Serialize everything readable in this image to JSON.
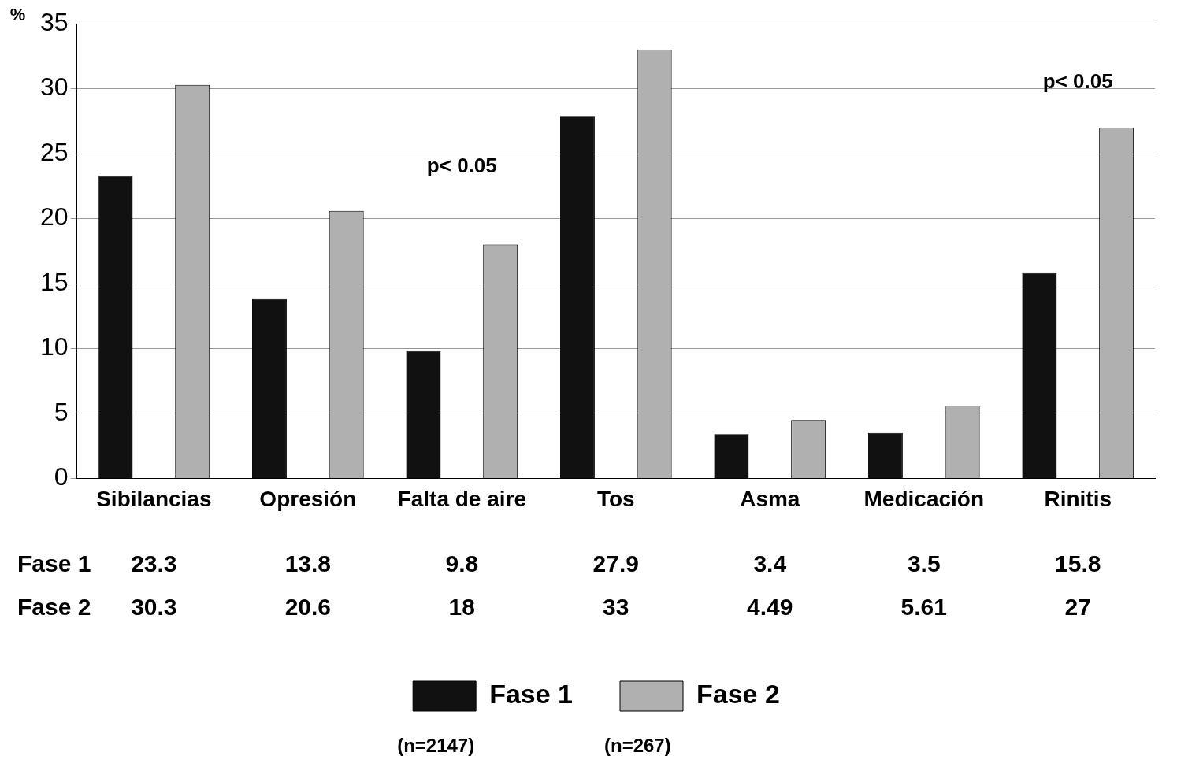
{
  "chart_data": {
    "type": "bar",
    "ylabel": "%",
    "categories": [
      "Sibilancias",
      "Opresión",
      "Falta de aire",
      "Tos",
      "Asma",
      "Medicación",
      "Rinitis"
    ],
    "series": [
      {
        "name": "Fase 1",
        "color": "#111111",
        "values": [
          23.3,
          13.8,
          9.8,
          27.9,
          3.4,
          3.5,
          15.8
        ]
      },
      {
        "name": "Fase 2",
        "color": "#b0b0b0",
        "values": [
          30.3,
          20.6,
          18,
          33,
          4.49,
          5.61,
          27
        ]
      }
    ],
    "ylim": [
      0,
      35
    ],
    "yticks": [
      0,
      5,
      10,
      15,
      20,
      25,
      30,
      35
    ],
    "grid": "y",
    "legend": "bottom",
    "data_labels": true,
    "annotations": [
      "p< 0.05",
      "p< 0.05",
      "(n=2147)",
      "(n=267)"
    ]
  }
}
